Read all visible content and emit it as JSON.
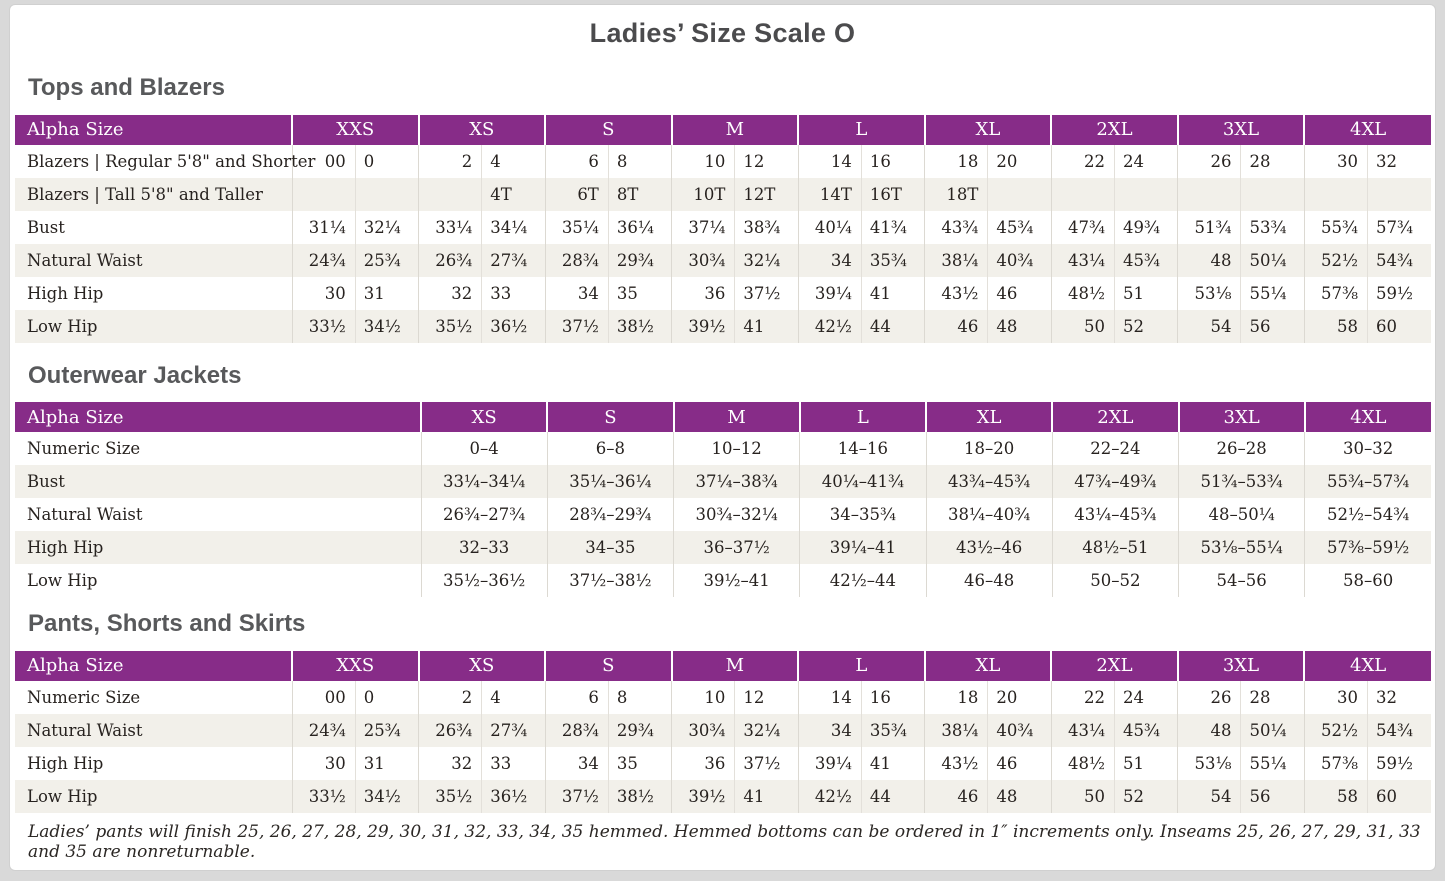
{
  "page": {
    "title": "Ladies’ Size Scale O",
    "footnote": "Ladies’ pants will finish 25, 26, 27, 28, 29, 30, 31, 32, 33, 34, 35 hemmed. Hemmed bottoms can be ordered in 1″ increments only. Inseams 25, 26, 27, 29, 31, 33 and 35 are nonreturnable."
  },
  "colors": {
    "header_purple": "#872C88",
    "row_alt": "#F2F0EA",
    "divider": "#DCD9D2",
    "divider_light": "#E3E0DA",
    "text": "#27221F",
    "heading_gray": "#58595B",
    "page_frame": "#D9D9D9"
  },
  "sections": [
    {
      "heading": "Tops and Blazers",
      "table": {
        "type": "paired",
        "corner_label": "Alpha Size",
        "sizes": [
          "XXS",
          "XS",
          "S",
          "M",
          "L",
          "XL",
          "2XL",
          "3XL",
          "4XL"
        ],
        "rows": [
          {
            "label": "Blazers  |  Regular 5'8\" and Shorter",
            "cells": [
              [
                "00",
                "0"
              ],
              [
                "2",
                "4"
              ],
              [
                "6",
                "8"
              ],
              [
                "10",
                "12"
              ],
              [
                "14",
                "16"
              ],
              [
                "18",
                "20"
              ],
              [
                "22",
                "24"
              ],
              [
                "26",
                "28"
              ],
              [
                "30",
                "32"
              ]
            ]
          },
          {
            "label": "Blazers  |  Tall 5'8\" and Taller",
            "cells": [
              [
                "",
                ""
              ],
              [
                "",
                "4T"
              ],
              [
                "6T",
                "8T"
              ],
              [
                "10T",
                "12T"
              ],
              [
                "14T",
                "16T"
              ],
              [
                "18T",
                ""
              ],
              [
                "",
                ""
              ],
              [
                "",
                ""
              ],
              [
                "",
                ""
              ]
            ]
          },
          {
            "label": "Bust",
            "cells": [
              [
                "31¼",
                "32¼"
              ],
              [
                "33¼",
                "34¼"
              ],
              [
                "35¼",
                "36¼"
              ],
              [
                "37¼",
                "38¾"
              ],
              [
                "40¼",
                "41¾"
              ],
              [
                "43¾",
                "45¾"
              ],
              [
                "47¾",
                "49¾"
              ],
              [
                "51¾",
                "53¾"
              ],
              [
                "55¾",
                "57¾"
              ]
            ]
          },
          {
            "label": "Natural Waist",
            "cells": [
              [
                "24¾",
                "25¾"
              ],
              [
                "26¾",
                "27¾"
              ],
              [
                "28¾",
                "29¾"
              ],
              [
                "30¾",
                "32¼"
              ],
              [
                "34",
                "35¾"
              ],
              [
                "38¼",
                "40¾"
              ],
              [
                "43¼",
                "45¾"
              ],
              [
                "48",
                "50¼"
              ],
              [
                "52½",
                "54¾"
              ]
            ]
          },
          {
            "label": "High Hip",
            "cells": [
              [
                "30",
                "31"
              ],
              [
                "32",
                "33"
              ],
              [
                "34",
                "35"
              ],
              [
                "36",
                "37½"
              ],
              [
                "39¼",
                "41"
              ],
              [
                "43½",
                "46"
              ],
              [
                "48½",
                "51"
              ],
              [
                "53⅛",
                "55¼"
              ],
              [
                "57⅜",
                "59½"
              ]
            ]
          },
          {
            "label": "Low Hip",
            "cells": [
              [
                "33½",
                "34½"
              ],
              [
                "35½",
                "36½"
              ],
              [
                "37½",
                "38½"
              ],
              [
                "39½",
                "41"
              ],
              [
                "42½",
                "44"
              ],
              [
                "46",
                "48"
              ],
              [
                "50",
                "52"
              ],
              [
                "54",
                "56"
              ],
              [
                "58",
                "60"
              ]
            ]
          }
        ]
      }
    },
    {
      "heading": "Outerwear Jackets",
      "table": {
        "type": "single",
        "corner_label": "Alpha Size",
        "sizes": [
          "XS",
          "S",
          "M",
          "L",
          "XL",
          "2XL",
          "3XL",
          "4XL"
        ],
        "rows": [
          {
            "label": "Numeric Size",
            "cells": [
              "0–4",
              "6–8",
              "10–12",
              "14–16",
              "18–20",
              "22–24",
              "26–28",
              "30–32"
            ]
          },
          {
            "label": "Bust",
            "cells": [
              "33¼–34¼",
              "35¼–36¼",
              "37¼–38¾",
              "40¼–41¾",
              "43¾–45¾",
              "47¾–49¾",
              "51¾–53¾",
              "55¾–57¾"
            ]
          },
          {
            "label": "Natural Waist",
            "cells": [
              "26¾–27¾",
              "28¾–29¾",
              "30¾–32¼",
              "34–35¾",
              "38¼–40¾",
              "43¼–45¾",
              "48–50¼",
              "52½–54¾"
            ]
          },
          {
            "label": "High Hip",
            "cells": [
              "32–33",
              "34–35",
              "36–37½",
              "39¼–41",
              "43½–46",
              "48½–51",
              "53⅛–55¼",
              "57⅜–59½"
            ]
          },
          {
            "label": "Low Hip",
            "cells": [
              "35½–36½",
              "37½–38½",
              "39½–41",
              "42½–44",
              "46–48",
              "50–52",
              "54–56",
              "58–60"
            ]
          }
        ]
      }
    },
    {
      "heading": "Pants, Shorts and Skirts",
      "table": {
        "type": "paired",
        "corner_label": "Alpha Size",
        "sizes": [
          "XXS",
          "XS",
          "S",
          "M",
          "L",
          "XL",
          "2XL",
          "3XL",
          "4XL"
        ],
        "rows": [
          {
            "label": "Numeric Size",
            "cells": [
              [
                "00",
                "0"
              ],
              [
                "2",
                "4"
              ],
              [
                "6",
                "8"
              ],
              [
                "10",
                "12"
              ],
              [
                "14",
                "16"
              ],
              [
                "18",
                "20"
              ],
              [
                "22",
                "24"
              ],
              [
                "26",
                "28"
              ],
              [
                "30",
                "32"
              ]
            ]
          },
          {
            "label": "Natural Waist",
            "cells": [
              [
                "24¾",
                "25¾"
              ],
              [
                "26¾",
                "27¾"
              ],
              [
                "28¾",
                "29¾"
              ],
              [
                "30¾",
                "32¼"
              ],
              [
                "34",
                "35¾"
              ],
              [
                "38¼",
                "40¾"
              ],
              [
                "43¼",
                "45¾"
              ],
              [
                "48",
                "50¼"
              ],
              [
                "52½",
                "54¾"
              ]
            ]
          },
          {
            "label": "High Hip",
            "cells": [
              [
                "30",
                "31"
              ],
              [
                "32",
                "33"
              ],
              [
                "34",
                "35"
              ],
              [
                "36",
                "37½"
              ],
              [
                "39¼",
                "41"
              ],
              [
                "43½",
                "46"
              ],
              [
                "48½",
                "51"
              ],
              [
                "53⅛",
                "55¼"
              ],
              [
                "57⅜",
                "59½"
              ]
            ]
          },
          {
            "label": "Low Hip",
            "cells": [
              [
                "33½",
                "34½"
              ],
              [
                "35½",
                "36½"
              ],
              [
                "37½",
                "38½"
              ],
              [
                "39½",
                "41"
              ],
              [
                "42½",
                "44"
              ],
              [
                "46",
                "48"
              ],
              [
                "50",
                "52"
              ],
              [
                "54",
                "56"
              ],
              [
                "58",
                "60"
              ]
            ]
          }
        ]
      }
    }
  ]
}
